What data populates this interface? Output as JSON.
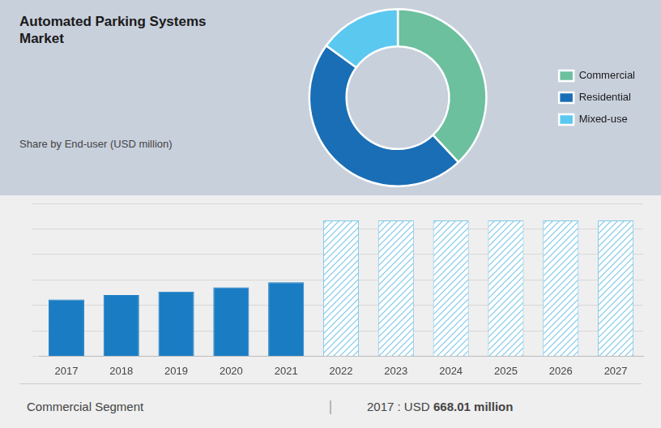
{
  "chart_data": [
    {
      "type": "doughnut",
      "title": "Automated Parking Systems\nMarket",
      "subtitle": "Share by End-user (USD million)",
      "categories": [
        "Commercial",
        "Residential",
        "Mixed-use"
      ],
      "values": [
        38,
        47,
        15
      ],
      "colors": [
        "#6cc09e",
        "#1a6eb5",
        "#5bc8f0"
      ],
      "legend": "right"
    },
    {
      "type": "bar",
      "categories": [
        "2017",
        "2018",
        "2019",
        "2020",
        "2021",
        "2022",
        "2023",
        "2024",
        "2025",
        "2026",
        "2027"
      ],
      "values": [
        668,
        720,
        760,
        810,
        870,
        1600,
        1600,
        1600,
        1600,
        1600,
        1600
      ],
      "colors": [
        "#1a7dc4",
        "#1a7dc4",
        "#1a7dc4",
        "#1a7dc4",
        "#1a7dc4",
        "#7ec8e8",
        "#7ec8e8",
        "#7ec8e8",
        "#7ec8e8",
        "#7ec8e8",
        "#7ec8e8"
      ],
      "ylim": [
        0,
        1800
      ],
      "yticks": [
        0,
        300,
        600,
        900,
        1200,
        1500,
        1800
      ],
      "grid": true,
      "tick_labels": "x",
      "annotations": [
        "Commercial Segment",
        "|",
        "2017 : USD ",
        "668.01 million"
      ]
    }
  ]
}
